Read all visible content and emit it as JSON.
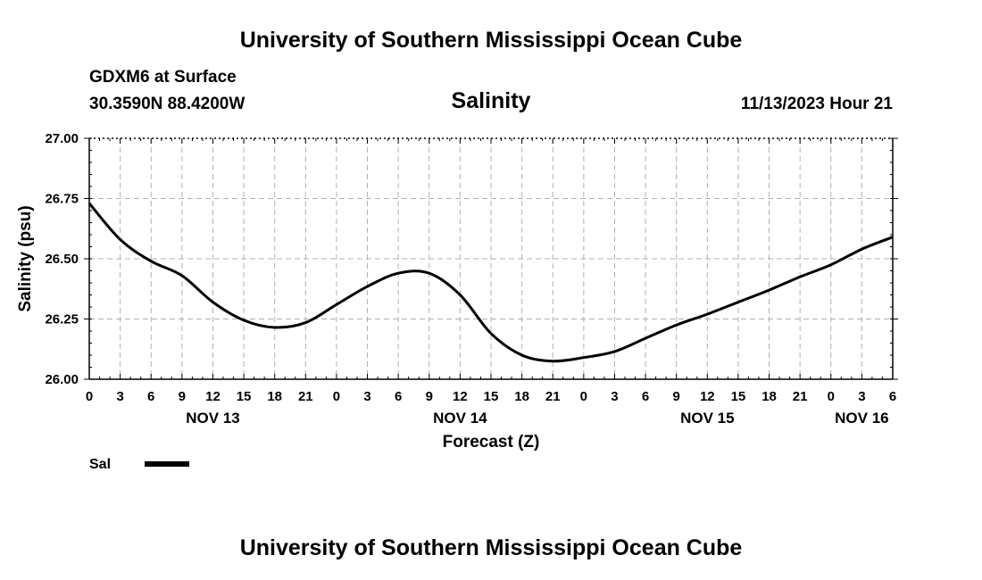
{
  "header": {
    "title": "University of Southern Mississippi Ocean Cube",
    "station": "GDXM6 at Surface",
    "coords": "30.3590N  88.4200W",
    "datetime": "11/13/2023 Hour 21"
  },
  "footer": {
    "title": "University of Southern Mississippi Ocean Cube"
  },
  "chart_data": {
    "type": "line",
    "title": "Salinity",
    "xlabel": "Forecast (Z)",
    "ylabel": "Salinity (psu)",
    "ylim": [
      26.0,
      27.0
    ],
    "yticks": [
      "26.00",
      "26.25",
      "26.50",
      "26.75",
      "27.00"
    ],
    "x_hour_range": [
      0,
      78
    ],
    "xtick_labels": [
      "0",
      "3",
      "6",
      "9",
      "12",
      "15",
      "18",
      "21",
      "0",
      "3",
      "6",
      "9",
      "12",
      "15",
      "18",
      "21",
      "0",
      "3",
      "6",
      "9",
      "12",
      "15",
      "18",
      "21",
      "0",
      "3",
      "6"
    ],
    "date_labels": [
      {
        "label": "NOV 13",
        "hour": 12
      },
      {
        "label": "NOV 14",
        "hour": 36
      },
      {
        "label": "NOV 15",
        "hour": 60
      },
      {
        "label": "NOV 16",
        "hour": 75
      }
    ],
    "grid": true,
    "series": [
      {
        "name": "Sal",
        "color": "#000000",
        "x": [
          0,
          3,
          6,
          9,
          12,
          15,
          18,
          21,
          24,
          27,
          30,
          33,
          36,
          39,
          42,
          45,
          48,
          51,
          54,
          57,
          60,
          63,
          66,
          69,
          72,
          75,
          78
        ],
        "y": [
          26.73,
          26.58,
          26.49,
          26.43,
          26.32,
          26.245,
          26.215,
          26.235,
          26.31,
          26.385,
          26.44,
          26.44,
          26.35,
          26.19,
          26.1,
          26.075,
          26.09,
          26.115,
          26.17,
          26.225,
          26.27,
          26.32,
          26.37,
          26.425,
          26.475,
          26.54,
          26.59
        ]
      }
    ],
    "legend": [
      {
        "label": "Sal"
      }
    ]
  }
}
